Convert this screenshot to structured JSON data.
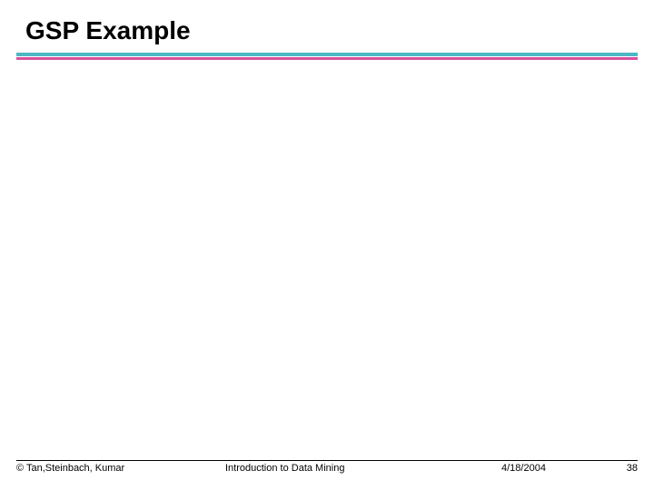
{
  "slide": {
    "title": "GSP Example",
    "title_color": "#000000",
    "title_fontsize": 28,
    "divider": {
      "top_color": "#4db8c4",
      "bottom_color": "#d94f9e",
      "top_height": 4,
      "bottom_height": 3
    },
    "background_color": "#ffffff"
  },
  "footer": {
    "copyright": "© Tan,Steinbach, Kumar",
    "course": "Introduction to Data Mining",
    "date": "4/18/2004",
    "page_number": "38",
    "fontsize": 11,
    "text_color": "#000000",
    "border_color": "#000000"
  }
}
